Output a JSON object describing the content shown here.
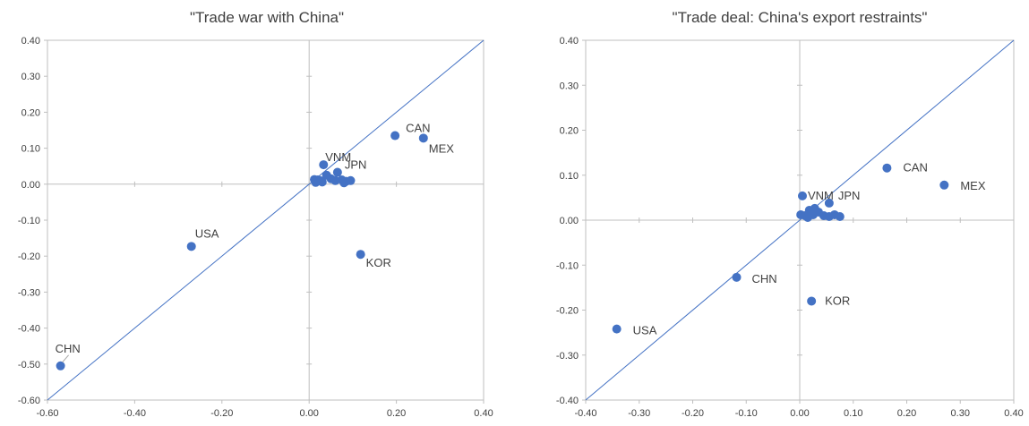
{
  "chart_data": [
    {
      "type": "scatter",
      "title": "\"Trade war with China\"",
      "xlabel": "",
      "ylabel": "",
      "xlim": [
        -0.6,
        0.4
      ],
      "ylim": [
        -0.6,
        0.4
      ],
      "xticks": [
        "-0.60",
        "-0.40",
        "-0.20",
        "0.00",
        "0.20",
        "0.40"
      ],
      "yticks": [
        "0.40",
        "0.30",
        "0.20",
        "0.10",
        "0.00",
        "-0.10",
        "-0.20",
        "-0.30",
        "-0.40",
        "-0.50",
        "-0.60"
      ],
      "grid": false,
      "diagonal": true,
      "marker_color": "#4472C4",
      "line_color": "#4472C4",
      "points": [
        {
          "label": "CHN",
          "x": -0.57,
          "y": -0.505
        },
        {
          "label": "USA",
          "x": -0.27,
          "y": -0.173
        },
        {
          "label": "KOR",
          "x": 0.118,
          "y": -0.195
        },
        {
          "label": "CAN",
          "x": 0.197,
          "y": 0.135
        },
        {
          "label": "MEX",
          "x": 0.262,
          "y": 0.128
        },
        {
          "label": "VNM",
          "x": 0.033,
          "y": 0.054
        },
        {
          "label": "JPN",
          "x": 0.065,
          "y": 0.033
        },
        {
          "label": "",
          "x": 0.04,
          "y": 0.025
        },
        {
          "label": "",
          "x": 0.012,
          "y": 0.013
        },
        {
          "label": "",
          "x": 0.02,
          "y": 0.012
        },
        {
          "label": "",
          "x": 0.025,
          "y": 0.01
        },
        {
          "label": "",
          "x": 0.03,
          "y": 0.006
        },
        {
          "label": "",
          "x": 0.015,
          "y": 0.005
        },
        {
          "label": "",
          "x": 0.05,
          "y": 0.015
        },
        {
          "label": "",
          "x": 0.06,
          "y": 0.01
        },
        {
          "label": "",
          "x": 0.075,
          "y": 0.012
        },
        {
          "label": "",
          "x": 0.085,
          "y": 0.008
        },
        {
          "label": "",
          "x": 0.095,
          "y": 0.01
        },
        {
          "label": "",
          "x": 0.08,
          "y": 0.004
        }
      ]
    },
    {
      "type": "scatter",
      "title": "\"Trade deal: China's export restraints\"",
      "xlabel": "",
      "ylabel": "",
      "xlim": [
        -0.4,
        0.4
      ],
      "ylim": [
        -0.4,
        0.4
      ],
      "xticks": [
        "-0.40",
        "-0.30",
        "-0.20",
        "-0.10",
        "0.00",
        "0.10",
        "0.20",
        "0.30",
        "0.40"
      ],
      "yticks": [
        "0.40",
        "0.30",
        "0.20",
        "0.10",
        "0.00",
        "-0.10",
        "-0.20",
        "-0.30",
        "-0.40"
      ],
      "grid": false,
      "diagonal": true,
      "marker_color": "#4472C4",
      "line_color": "#4472C4",
      "points": [
        {
          "label": "USA",
          "x": -0.342,
          "y": -0.242
        },
        {
          "label": "CHN",
          "x": -0.118,
          "y": -0.127
        },
        {
          "label": "KOR",
          "x": 0.022,
          "y": -0.18
        },
        {
          "label": "CAN",
          "x": 0.163,
          "y": 0.116
        },
        {
          "label": "MEX",
          "x": 0.27,
          "y": 0.078
        },
        {
          "label": "VNM",
          "x": 0.005,
          "y": 0.054
        },
        {
          "label": "JPN",
          "x": 0.055,
          "y": 0.038
        },
        {
          "label": "",
          "x": 0.028,
          "y": 0.026
        },
        {
          "label": "",
          "x": 0.018,
          "y": 0.022
        },
        {
          "label": "",
          "x": 0.002,
          "y": 0.012
        },
        {
          "label": "",
          "x": 0.01,
          "y": 0.01
        },
        {
          "label": "",
          "x": 0.015,
          "y": 0.006
        },
        {
          "label": "",
          "x": 0.025,
          "y": 0.012
        },
        {
          "label": "",
          "x": 0.035,
          "y": 0.018
        },
        {
          "label": "",
          "x": 0.045,
          "y": 0.01
        },
        {
          "label": "",
          "x": 0.055,
          "y": 0.008
        },
        {
          "label": "",
          "x": 0.065,
          "y": 0.012
        },
        {
          "label": "",
          "x": 0.075,
          "y": 0.008
        }
      ]
    }
  ]
}
